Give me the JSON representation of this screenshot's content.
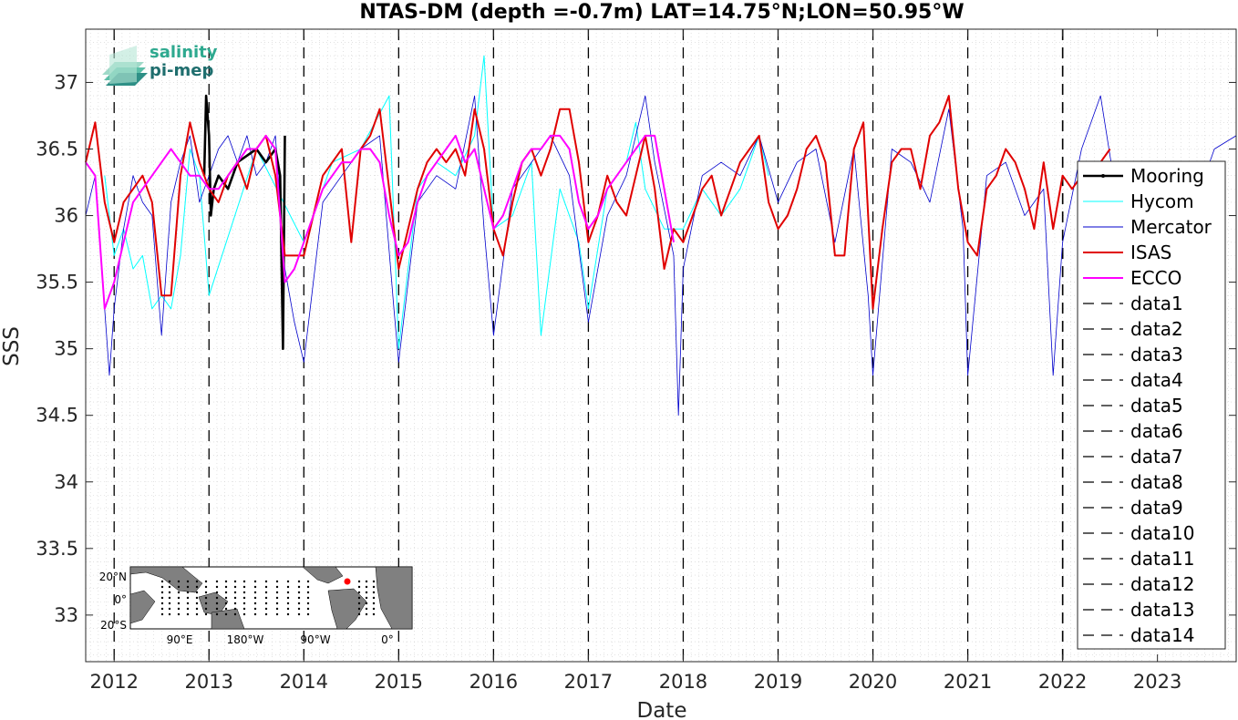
{
  "chart_data": {
    "type": "line",
    "title": "NTAS-DM (depth =-0.7m) LAT=14.75°N;LON=50.95°W",
    "xlabel": "Date",
    "ylabel": "SSS",
    "xlim": [
      2011.7,
      2023.83
    ],
    "ylim": [
      32.65,
      37.4
    ],
    "x_ticks": [
      "2012",
      "2013",
      "2014",
      "2015",
      "2016",
      "2017",
      "2018",
      "2019",
      "2020",
      "2021",
      "2022",
      "2023"
    ],
    "y_ticks": [
      33,
      33.5,
      34,
      34.5,
      35,
      35.5,
      36,
      36.5,
      37
    ],
    "grid": true,
    "legend_position": "right",
    "series": [
      {
        "name": "Mooring",
        "color": "#000000",
        "x": [
          2012.95,
          2012.97,
          2013.0,
          2013.02,
          2013.05,
          2013.1,
          2013.2,
          2013.3,
          2013.4,
          2013.5,
          2013.6,
          2013.7,
          2013.75,
          2013.78,
          2013.8
        ],
        "y": [
          36.3,
          36.9,
          36.6,
          36.0,
          36.2,
          36.3,
          36.2,
          36.4,
          36.45,
          36.5,
          36.4,
          36.5,
          36.3,
          35.0,
          36.6
        ]
      },
      {
        "name": "Hycom",
        "color": "#00ffff",
        "x": [
          2011.9,
          2012.0,
          2012.1,
          2012.2,
          2012.3,
          2012.4,
          2012.5,
          2012.6,
          2012.7,
          2012.8,
          2012.9,
          2013.0,
          2013.5,
          2014.0,
          2014.3,
          2014.6,
          2014.9,
          2015.0,
          2015.2,
          2015.4,
          2015.6,
          2015.8,
          2015.9,
          2016.0,
          2016.2,
          2016.4,
          2016.5,
          2016.7,
          2016.9,
          2017.0,
          2017.2,
          2017.4,
          2017.5,
          2017.6,
          2017.8,
          2018.0,
          2018.2,
          2018.4,
          2018.6,
          2018.8,
          2018.9
        ],
        "y": [
          36.3,
          35.7,
          35.9,
          35.6,
          35.7,
          35.3,
          35.4,
          35.3,
          35.7,
          36.5,
          36.3,
          35.4,
          36.5,
          35.8,
          36.4,
          36.5,
          36.9,
          35.0,
          36.2,
          36.4,
          36.3,
          36.6,
          37.2,
          35.9,
          36.0,
          36.4,
          35.1,
          36.2,
          35.8,
          35.3,
          36.2,
          36.4,
          36.7,
          36.2,
          35.9,
          35.9,
          36.2,
          36.0,
          36.2,
          36.6,
          36.3
        ]
      },
      {
        "name": "Mercator",
        "color": "#0000cc",
        "x": [
          2011.7,
          2011.8,
          2011.9,
          2011.95,
          2012.0,
          2012.1,
          2012.2,
          2012.3,
          2012.4,
          2012.5,
          2012.6,
          2012.7,
          2012.8,
          2012.9,
          2013.0,
          2013.1,
          2013.2,
          2013.3,
          2013.4,
          2013.5,
          2013.6,
          2013.7,
          2013.8,
          2013.9,
          2014.0,
          2014.2,
          2014.4,
          2014.6,
          2014.8,
          2014.95,
          2015.0,
          2015.2,
          2015.4,
          2015.6,
          2015.8,
          2015.9,
          2016.0,
          2016.2,
          2016.4,
          2016.6,
          2016.8,
          2017.0,
          2017.2,
          2017.4,
          2017.6,
          2017.7,
          2017.9,
          2017.95,
          2018.0,
          2018.2,
          2018.4,
          2018.6,
          2018.8,
          2019.0,
          2019.2,
          2019.4,
          2019.6,
          2019.8,
          2019.95,
          2020.0,
          2020.2,
          2020.4,
          2020.6,
          2020.8,
          2020.95,
          2021.0,
          2021.2,
          2021.4,
          2021.6,
          2021.8,
          2021.9,
          2022.0,
          2022.2,
          2022.4,
          2022.6,
          2022.8,
          2023.0,
          2023.2,
          2023.4,
          2023.6,
          2023.83
        ],
        "y": [
          36.0,
          36.3,
          35.3,
          34.8,
          35.3,
          35.9,
          36.3,
          36.1,
          36.0,
          35.1,
          36.1,
          36.4,
          36.6,
          36.1,
          36.3,
          36.5,
          36.6,
          36.4,
          36.6,
          36.3,
          36.4,
          36.6,
          35.6,
          35.2,
          34.9,
          36.1,
          36.3,
          36.5,
          36.6,
          35.3,
          34.9,
          36.1,
          36.3,
          36.2,
          36.9,
          35.9,
          35.1,
          36.2,
          36.4,
          36.6,
          36.3,
          35.2,
          36.0,
          36.3,
          36.9,
          36.4,
          35.7,
          34.5,
          35.6,
          36.3,
          36.4,
          36.3,
          36.6,
          36.1,
          36.4,
          36.5,
          35.8,
          36.5,
          35.4,
          34.8,
          36.5,
          36.4,
          36.1,
          36.8,
          35.9,
          34.8,
          36.3,
          36.4,
          36.0,
          36.2,
          34.8,
          35.8,
          36.5,
          36.9,
          36.0,
          36.3,
          36.2,
          36.4,
          36.1,
          36.5,
          36.6
        ]
      },
      {
        "name": "ISAS",
        "color": "#e00000",
        "x": [
          2011.7,
          2011.8,
          2011.9,
          2012.0,
          2012.1,
          2012.2,
          2012.3,
          2012.4,
          2012.5,
          2012.6,
          2012.7,
          2012.8,
          2012.9,
          2013.0,
          2013.1,
          2013.2,
          2013.3,
          2013.4,
          2013.5,
          2013.6,
          2013.7,
          2013.8,
          2013.9,
          2014.0,
          2014.1,
          2014.2,
          2014.3,
          2014.4,
          2014.5,
          2014.6,
          2014.7,
          2014.8,
          2014.9,
          2015.0,
          2015.1,
          2015.2,
          2015.3,
          2015.4,
          2015.5,
          2015.6,
          2015.7,
          2015.8,
          2015.9,
          2016.0,
          2016.1,
          2016.2,
          2016.3,
          2016.4,
          2016.5,
          2016.6,
          2016.7,
          2016.8,
          2016.9,
          2017.0,
          2017.1,
          2017.2,
          2017.3,
          2017.4,
          2017.5,
          2017.6,
          2017.7,
          2017.8,
          2017.9,
          2018.0,
          2018.1,
          2018.2,
          2018.3,
          2018.4,
          2018.5,
          2018.6,
          2018.7,
          2018.8,
          2018.9,
          2019.0,
          2019.1,
          2019.2,
          2019.3,
          2019.4,
          2019.5,
          2019.6,
          2019.7,
          2019.8,
          2019.9,
          2020.0,
          2020.1,
          2020.2,
          2020.3,
          2020.4,
          2020.5,
          2020.6,
          2020.7,
          2020.8,
          2020.9,
          2021.0,
          2021.1,
          2021.2,
          2021.3,
          2021.4,
          2021.5,
          2021.6,
          2021.7,
          2021.8,
          2021.9,
          2022.0,
          2022.1,
          2022.2,
          2022.3,
          2022.4,
          2022.5
        ],
        "y": [
          36.4,
          36.7,
          36.1,
          35.8,
          36.1,
          36.2,
          36.3,
          36.1,
          35.4,
          35.4,
          36.3,
          36.7,
          36.4,
          36.2,
          36.1,
          36.3,
          36.4,
          36.2,
          36.5,
          36.6,
          36.3,
          35.7,
          35.7,
          35.7,
          36.0,
          36.3,
          36.4,
          36.5,
          35.8,
          36.5,
          36.6,
          36.8,
          36.2,
          35.6,
          35.9,
          36.2,
          36.4,
          36.5,
          36.4,
          36.5,
          36.3,
          36.8,
          36.5,
          35.9,
          35.7,
          36.1,
          36.4,
          36.5,
          36.3,
          36.5,
          36.8,
          36.8,
          36.4,
          35.8,
          36.0,
          36.3,
          36.1,
          36.0,
          36.3,
          36.6,
          36.2,
          35.6,
          35.9,
          35.8,
          36.0,
          36.2,
          36.3,
          36.0,
          36.2,
          36.4,
          36.5,
          36.6,
          36.1,
          35.9,
          36.0,
          36.2,
          36.5,
          36.6,
          36.4,
          35.7,
          35.7,
          36.5,
          36.7,
          35.3,
          35.9,
          36.4,
          36.5,
          36.5,
          36.2,
          36.6,
          36.7,
          36.9,
          36.2,
          35.8,
          35.7,
          36.2,
          36.3,
          36.5,
          36.4,
          36.2,
          35.9,
          36.4,
          35.9,
          36.3,
          36.2,
          36.3,
          36.4,
          36.4,
          36.5
        ]
      },
      {
        "name": "ECCO",
        "color": "#ff00ff",
        "x": [
          2011.7,
          2011.8,
          2011.9,
          2012.0,
          2012.1,
          2012.2,
          2012.3,
          2012.4,
          2012.5,
          2012.6,
          2012.7,
          2012.8,
          2012.9,
          2013.0,
          2013.1,
          2013.2,
          2013.3,
          2013.4,
          2013.5,
          2013.6,
          2013.7,
          2013.8,
          2013.9,
          2014.0,
          2014.1,
          2014.2,
          2014.3,
          2014.4,
          2014.5,
          2014.6,
          2014.7,
          2014.8,
          2014.9,
          2015.0,
          2015.1,
          2015.2,
          2015.3,
          2015.4,
          2015.5,
          2015.6,
          2015.7,
          2015.8,
          2015.9,
          2016.0,
          2016.1,
          2016.2,
          2016.3,
          2016.4,
          2016.5,
          2016.6,
          2016.7,
          2016.8,
          2016.9,
          2017.0,
          2017.1,
          2017.2,
          2017.3,
          2017.4,
          2017.5,
          2017.6,
          2017.7,
          2017.8,
          2017.9
        ],
        "y": [
          36.4,
          36.3,
          35.3,
          35.5,
          35.8,
          36.1,
          36.2,
          36.3,
          36.4,
          36.5,
          36.4,
          36.3,
          36.3,
          36.2,
          36.2,
          36.3,
          36.4,
          36.5,
          36.5,
          36.6,
          36.5,
          35.5,
          35.6,
          35.8,
          36.0,
          36.2,
          36.3,
          36.4,
          36.4,
          36.5,
          36.5,
          36.4,
          36.0,
          35.7,
          35.8,
          36.1,
          36.3,
          36.4,
          36.5,
          36.6,
          36.4,
          36.5,
          36.2,
          35.9,
          36.0,
          36.2,
          36.4,
          36.5,
          36.5,
          36.6,
          36.6,
          36.5,
          36.1,
          35.9,
          36.0,
          36.2,
          36.3,
          36.4,
          36.5,
          36.6,
          36.6,
          36.2,
          35.8
        ]
      },
      {
        "name": "data1",
        "x": [
          2012.0
        ]
      },
      {
        "name": "data2",
        "x": [
          2013.0
        ]
      },
      {
        "name": "data3",
        "x": [
          2014.0
        ]
      },
      {
        "name": "data4",
        "x": [
          2015.0
        ]
      },
      {
        "name": "data5",
        "x": [
          2016.0
        ]
      },
      {
        "name": "data6",
        "x": [
          2017.0
        ]
      },
      {
        "name": "data7",
        "x": [
          2018.0
        ]
      },
      {
        "name": "data8",
        "x": [
          2019.0
        ]
      },
      {
        "name": "data9",
        "x": [
          2020.0
        ]
      },
      {
        "name": "data10",
        "x": [
          2021.0
        ]
      },
      {
        "name": "data11",
        "x": [
          2022.0
        ]
      },
      {
        "name": "data12",
        "x": [
          2022.0
        ]
      },
      {
        "name": "data13",
        "x": [
          2022.0
        ]
      },
      {
        "name": "data14",
        "x": [
          2022.0
        ]
      }
    ]
  },
  "logo": {
    "line1": "salinity",
    "line2": "pi-mep"
  },
  "inset_map": {
    "y_labels": [
      "20°N",
      "0°",
      "20°S"
    ],
    "x_labels": [
      "90°E",
      "180°W",
      "90°W",
      "0°"
    ],
    "marker_color": "#ff0000"
  }
}
